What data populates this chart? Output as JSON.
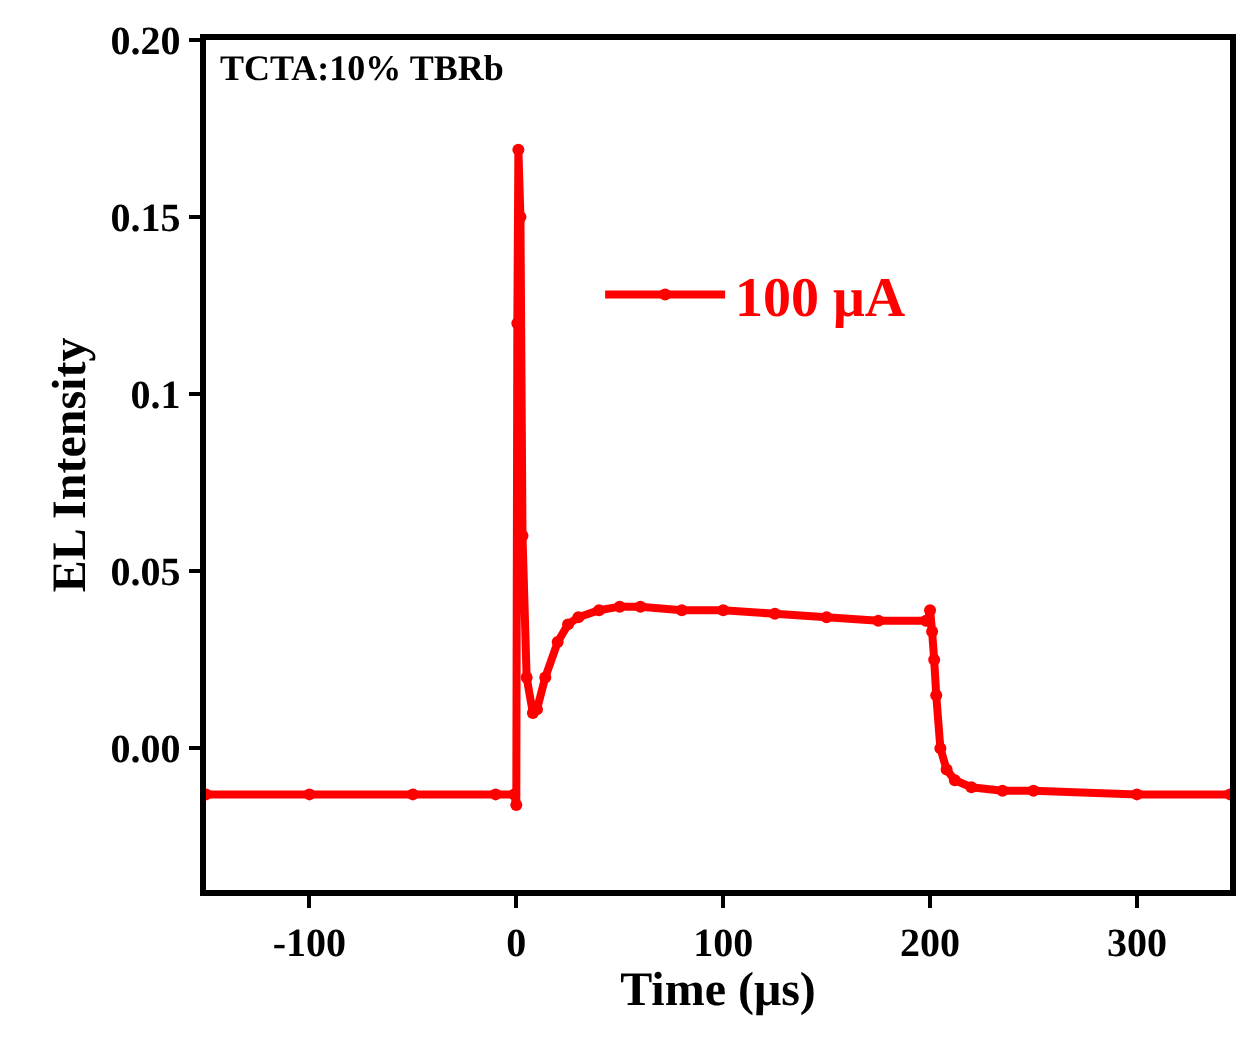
{
  "chart_data": {
    "type": "line",
    "xlabel": "Time (μs)",
    "ylabel": "EL Intensity",
    "annotations": [
      "TCTA:10% TBRb"
    ],
    "series": [
      {
        "name": "100 μA",
        "color": "#ff0000",
        "x": [
          -150,
          -100,
          -50,
          -10,
          -1,
          0,
          0.5,
          1,
          2,
          3,
          5,
          8,
          10,
          14,
          20,
          25,
          30,
          40,
          50,
          60,
          80,
          100,
          125,
          150,
          175,
          198,
          199,
          200,
          201,
          202,
          203,
          205,
          208,
          212,
          220,
          235,
          250,
          300,
          345
        ],
        "values": [
          -0.013,
          -0.013,
          -0.013,
          -0.013,
          -0.013,
          -0.016,
          0.12,
          0.169,
          0.15,
          0.06,
          0.02,
          0.01,
          0.011,
          0.02,
          0.03,
          0.035,
          0.037,
          0.039,
          0.04,
          0.04,
          0.039,
          0.039,
          0.038,
          0.037,
          0.036,
          0.036,
          0.036,
          0.039,
          0.033,
          0.025,
          0.015,
          0.0,
          -0.006,
          -0.009,
          -0.011,
          -0.012,
          -0.012,
          -0.013,
          -0.013
        ]
      }
    ],
    "xlim": [
      -150,
      345
    ],
    "ylim": [
      -0.04,
      0.2
    ],
    "xticks": [
      -100,
      0,
      100,
      200,
      300
    ],
    "yticks": [
      {
        "value": 0,
        "label": "0.00"
      },
      0.05,
      0.1,
      0.15,
      {
        "value": 0.2,
        "label": "0.20"
      }
    ],
    "legend": "right",
    "marker": "circle",
    "line_style": "solid"
  }
}
